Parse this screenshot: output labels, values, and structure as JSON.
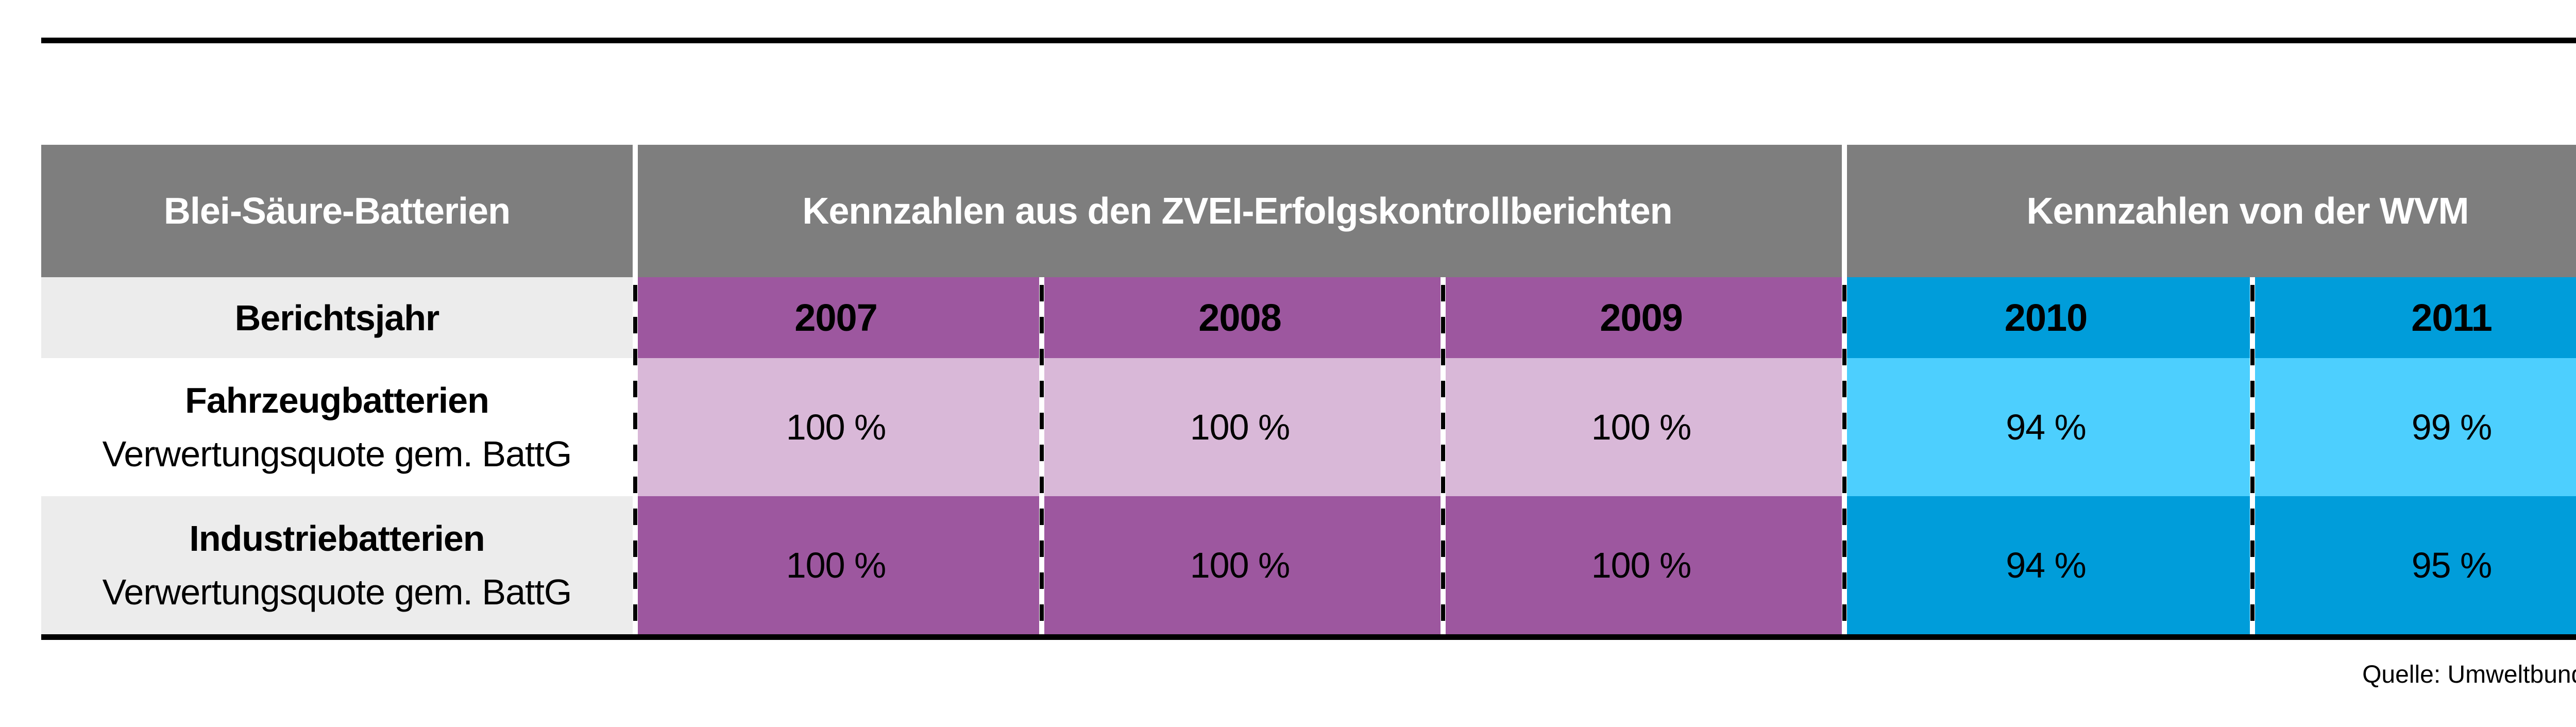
{
  "table": {
    "corner_label": "Blei-Säure-Batterien",
    "sections": [
      {
        "label": "Kennzahlen aus den ZVEI-Erfolgskontrollberichten",
        "span": 3
      },
      {
        "label": "Kennzahlen von der WVM",
        "span": 2
      }
    ],
    "year_row_label": "Berichtsjahr",
    "years": [
      "2007",
      "2008",
      "2009",
      "2010",
      "2011"
    ],
    "data_rows": [
      {
        "title": "Fahrzeugbatterien",
        "subtitle": "Verwertungsquote gem. BattG",
        "values": [
          "100 %",
          "100 %",
          "100 %",
          "94 %",
          "99 %"
        ]
      },
      {
        "title": "Industriebatterien",
        "subtitle": "Verwertungsquote gem. BattG",
        "values": [
          "100 %",
          "100 %",
          "100 %",
          "94 %",
          "95 %"
        ]
      }
    ]
  },
  "footer": {
    "source": "Quelle: Umweltbundesamt"
  },
  "colors": {
    "header_grey": "#7e7e7e",
    "row_grey_light": "#ececec",
    "purple_dark": "#9d579f",
    "purple_light": "#d9b8d8",
    "blue_dark": "#009dda",
    "blue_light": "#4dcffe",
    "rule_black": "#000000",
    "header_text": "#ffffff"
  },
  "chart_data": {
    "type": "table",
    "title": "Blei-Säure-Batterien",
    "column_groups": [
      {
        "label": "Kennzahlen aus den ZVEI-Erfolgskontrollberichten",
        "columns": [
          "2007",
          "2008",
          "2009"
        ]
      },
      {
        "label": "Kennzahlen von der WVM",
        "columns": [
          "2010",
          "2011"
        ]
      }
    ],
    "row_axis_label": "Berichtsjahr",
    "categories": [
      "2007",
      "2008",
      "2009",
      "2010",
      "2011"
    ],
    "series": [
      {
        "name": "Fahrzeugbatterien — Verwertungsquote gem. BattG",
        "values_pct": [
          100,
          100,
          100,
          94,
          99
        ]
      },
      {
        "name": "Industriebatterien — Verwertungsquote gem. BattG",
        "values_pct": [
          100,
          100,
          100,
          94,
          95
        ]
      }
    ],
    "unit": "%",
    "source": "Quelle: Umweltbundesamt"
  }
}
